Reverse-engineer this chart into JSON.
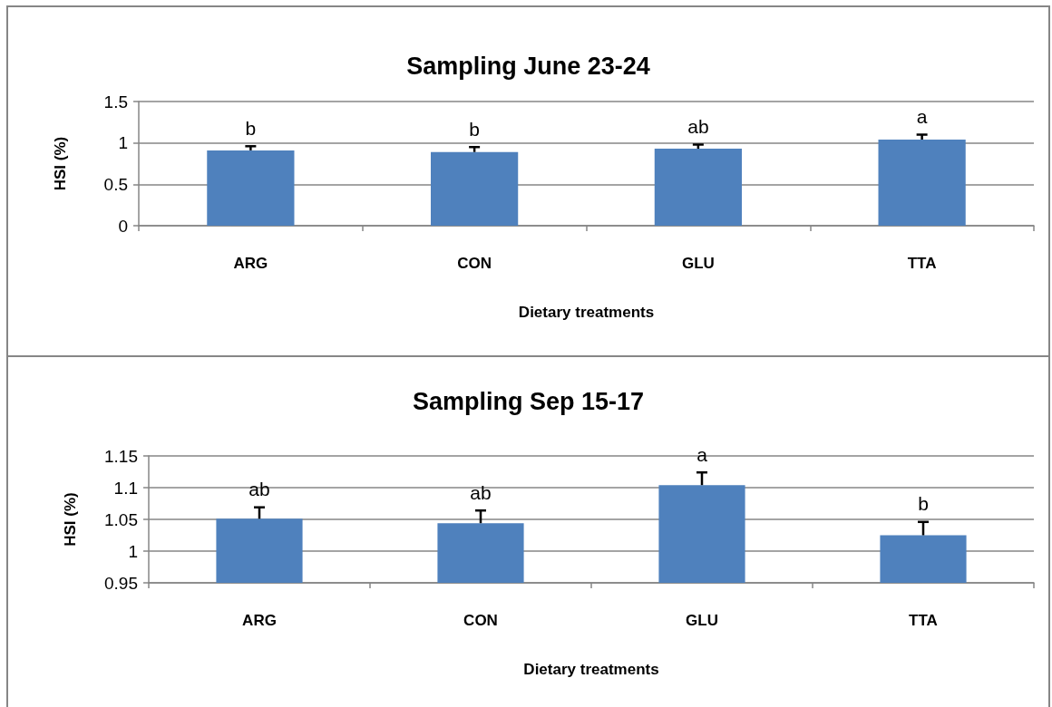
{
  "chart_data": [
    {
      "type": "bar",
      "title": "Sampling June 23-24",
      "xlabel": "Dietary treatments",
      "ylabel": "HSI (%)",
      "categories": [
        "ARG",
        "CON",
        "GLU",
        "TTA"
      ],
      "values": [
        0.91,
        0.89,
        0.93,
        1.04
      ],
      "value_labels": [
        "b",
        "b",
        "ab",
        "a"
      ],
      "color": "#4f81bd",
      "errors": [
        [
          0.91,
          0.96
        ],
        [
          0.89,
          0.95
        ],
        [
          0.93,
          0.98
        ],
        [
          1.04,
          1.1
        ]
      ],
      "ylim": [
        0,
        1.5
      ],
      "yticks": [
        0,
        0.5,
        1,
        1.5
      ],
      "grid": "y"
    },
    {
      "type": "bar",
      "title": "Sampling Sep 15-17",
      "xlabel": "Dietary treatments",
      "ylabel": "HSI (%)",
      "categories": [
        "ARG",
        "CON",
        "GLU",
        "TTA"
      ],
      "values": [
        1.051,
        1.044,
        1.104,
        1.025
      ],
      "value_labels": [
        "ab",
        "ab",
        "a",
        "b"
      ],
      "color": "#4f81bd",
      "errors": [
        [
          1.051,
          1.069
        ],
        [
          1.044,
          1.064
        ],
        [
          1.104,
          1.124
        ],
        [
          1.025,
          1.046
        ]
      ],
      "ylim": [
        0.95,
        1.15
      ],
      "yticks": [
        0.95,
        1,
        1.05,
        1.1,
        1.15
      ],
      "grid": "y"
    }
  ]
}
